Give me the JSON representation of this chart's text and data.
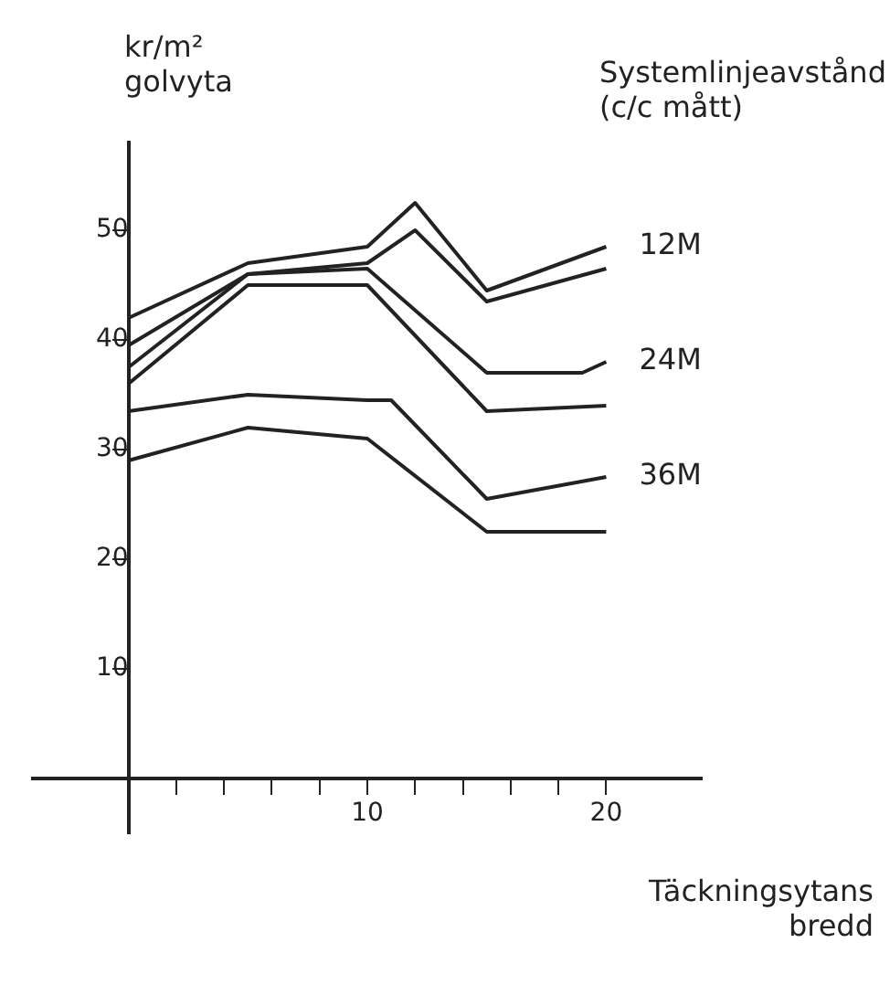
{
  "chart_data": {
    "type": "line",
    "ylabel": "kr/m² golvyta",
    "xlabel": "Täckningsytans bredd",
    "legend_title": "Systemlinjeavstånd (c/c mått)",
    "legend": false,
    "marker": "none",
    "xlim": [
      -4,
      24
    ],
    "ylim": [
      -5,
      58
    ],
    "xticks": [
      {
        "value": 2,
        "label": null
      },
      {
        "value": 4,
        "label": null
      },
      {
        "value": 6,
        "label": null
      },
      {
        "value": 8,
        "label": null
      },
      10,
      {
        "value": 12,
        "label": null
      },
      {
        "value": 14,
        "label": null
      },
      {
        "value": 16,
        "label": null
      },
      {
        "value": 18,
        "label": null
      },
      20
    ],
    "yticks": [
      10,
      20,
      30,
      40,
      50
    ],
    "series": [
      {
        "name": "12M",
        "color": "#222222",
        "x": [
          0,
          5,
          10,
          12,
          15,
          20
        ],
        "values": [
          42,
          47,
          48.5,
          52.5,
          44.5,
          48.5
        ]
      },
      {
        "color": "#222222",
        "x": [
          0,
          5,
          10,
          12,
          15,
          20
        ],
        "values": [
          39.5,
          46,
          47,
          50,
          43.5,
          46.5
        ]
      },
      {
        "name": "24M",
        "color": "#222222",
        "x": [
          0,
          5,
          10,
          15,
          19,
          20
        ],
        "values": [
          37.5,
          46,
          46.5,
          37,
          37,
          38
        ]
      },
      {
        "color": "#222222",
        "x": [
          0,
          5,
          10,
          15,
          20
        ],
        "values": [
          36,
          45,
          45,
          33.5,
          34
        ]
      },
      {
        "name": "36M",
        "color": "#222222",
        "x": [
          0,
          5,
          10,
          11,
          15,
          20
        ],
        "values": [
          33.5,
          35,
          34.5,
          34.5,
          25.5,
          27.5
        ]
      },
      {
        "color": "#222222",
        "x": [
          0,
          5,
          10,
          15,
          20
        ],
        "values": [
          29,
          32,
          31,
          22.5,
          22.5
        ]
      }
    ]
  }
}
